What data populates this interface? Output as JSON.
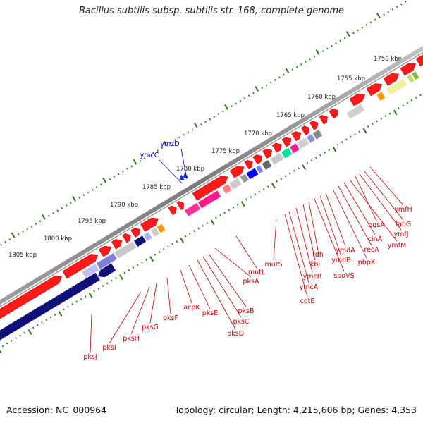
{
  "title": "Bacillus subtilis subsp. subtilis str. 168, complete genome",
  "footer": {
    "accession": "Accession: NC_000964",
    "summary": "Topology: circular; Length: 4,215,606 bp; Genes: 4,353"
  },
  "scale_labels": [
    "1750 kbp",
    "1755 kbp",
    "1760 kbp",
    "1765 kbp",
    "1770 kbp",
    "1775 kbp",
    "1780 kbp",
    "1785 kbp",
    "1790 kbp",
    "1795 kbp",
    "1800 kbp",
    "1805 kbp"
  ],
  "colors": {
    "forward_gene": "#ff1a1a",
    "reverse_gene": "#10107a",
    "backbone": "#8c8c8c",
    "tick": "#2a7a1a",
    "label_red": "#cc0000",
    "label_blue": "#0000cc"
  },
  "genes_above": [
    {
      "name": "ymzD",
      "color": "#0000cc"
    },
    {
      "name": "ymcC",
      "color": "#0000cc"
    }
  ],
  "genes_below": [
    {
      "name": "ymfH"
    },
    {
      "name": "fabG"
    },
    {
      "name": "ymfJ"
    },
    {
      "name": "pgsA"
    },
    {
      "name": "ymfM"
    },
    {
      "name": "cinA"
    },
    {
      "name": "recA"
    },
    {
      "name": "pbpX"
    },
    {
      "name": "ymdA"
    },
    {
      "name": "ymdB"
    },
    {
      "name": "spoVS"
    },
    {
      "name": "tdh"
    },
    {
      "name": "kbl"
    },
    {
      "name": "ymcB"
    },
    {
      "name": "mutS"
    },
    {
      "name": "ymcA"
    },
    {
      "name": "cotE"
    },
    {
      "name": "mutL"
    },
    {
      "name": "pksA"
    },
    {
      "name": "pksB"
    },
    {
      "name": "pksC"
    },
    {
      "name": "pksD"
    },
    {
      "name": "pksE"
    },
    {
      "name": "acpK"
    },
    {
      "name": "pksF"
    },
    {
      "name": "pksG"
    },
    {
      "name": "pksH"
    },
    {
      "name": "pksI"
    },
    {
      "name": "pksJ"
    }
  ]
}
